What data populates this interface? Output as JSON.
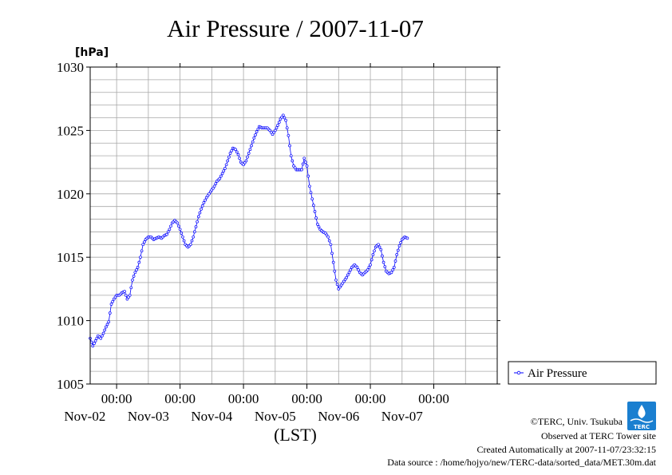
{
  "chart_data": {
    "type": "line",
    "title": "Air Pressure / 2007-11-07",
    "ylabel": "[hPa]",
    "xlabel": "(LST)",
    "ylim": [
      1005,
      1030
    ],
    "yticks": [
      1005,
      1010,
      1015,
      1020,
      1025,
      1030
    ],
    "xlim": [
      "2007-11-01 14:00",
      "2007-11-08 00:00"
    ],
    "x_ticks": [
      {
        "x": "2007-11-02 00:00",
        "time": "00:00",
        "date": "Nov-02"
      },
      {
        "x": "2007-11-03 00:00",
        "time": "00:00",
        "date": "Nov-03"
      },
      {
        "x": "2007-11-04 00:00",
        "time": "00:00",
        "date": "Nov-04"
      },
      {
        "x": "2007-11-05 00:00",
        "time": "00:00",
        "date": "Nov-05"
      },
      {
        "x": "2007-11-06 00:00",
        "time": "00:00",
        "date": "Nov-06"
      },
      {
        "x": "2007-11-07 00:00",
        "time": "00:00",
        "date": "Nov-07"
      }
    ],
    "grid": true,
    "legend": "right",
    "series": [
      {
        "name": "Air Pressure",
        "color": "#0000ff",
        "points": [
          {
            "x": "2007-11-01 14:00",
            "y": 1008.6
          },
          {
            "x": "2007-11-01 15:00",
            "y": 1008.0
          },
          {
            "x": "2007-11-01 16:00",
            "y": 1008.4
          },
          {
            "x": "2007-11-01 17:00",
            "y": 1008.8
          },
          {
            "x": "2007-11-01 18:00",
            "y": 1008.6
          },
          {
            "x": "2007-11-01 19:00",
            "y": 1009.0
          },
          {
            "x": "2007-11-01 20:00",
            "y": 1009.5
          },
          {
            "x": "2007-11-01 21:00",
            "y": 1009.9
          },
          {
            "x": "2007-11-01 22:00",
            "y": 1011.3
          },
          {
            "x": "2007-11-01 23:00",
            "y": 1011.7
          },
          {
            "x": "2007-11-02 00:00",
            "y": 1012.0
          },
          {
            "x": "2007-11-02 01:00",
            "y": 1012.0
          },
          {
            "x": "2007-11-02 02:00",
            "y": 1012.2
          },
          {
            "x": "2007-11-02 03:00",
            "y": 1012.3
          },
          {
            "x": "2007-11-02 04:00",
            "y": 1011.7
          },
          {
            "x": "2007-11-02 05:00",
            "y": 1012.0
          },
          {
            "x": "2007-11-02 06:00",
            "y": 1013.2
          },
          {
            "x": "2007-11-02 07:00",
            "y": 1013.8
          },
          {
            "x": "2007-11-02 08:00",
            "y": 1014.2
          },
          {
            "x": "2007-11-02 09:00",
            "y": 1015.0
          },
          {
            "x": "2007-11-02 10:00",
            "y": 1016.0
          },
          {
            "x": "2007-11-02 11:00",
            "y": 1016.4
          },
          {
            "x": "2007-11-02 12:00",
            "y": 1016.6
          },
          {
            "x": "2007-11-02 13:00",
            "y": 1016.6
          },
          {
            "x": "2007-11-02 14:00",
            "y": 1016.4
          },
          {
            "x": "2007-11-02 15:00",
            "y": 1016.5
          },
          {
            "x": "2007-11-02 16:00",
            "y": 1016.6
          },
          {
            "x": "2007-11-02 17:00",
            "y": 1016.5
          },
          {
            "x": "2007-11-02 18:00",
            "y": 1016.7
          },
          {
            "x": "2007-11-02 19:00",
            "y": 1016.8
          },
          {
            "x": "2007-11-02 20:00",
            "y": 1017.2
          },
          {
            "x": "2007-11-02 21:00",
            "y": 1017.7
          },
          {
            "x": "2007-11-02 22:00",
            "y": 1017.9
          },
          {
            "x": "2007-11-02 23:00",
            "y": 1017.7
          },
          {
            "x": "2007-11-03 00:00",
            "y": 1017.2
          },
          {
            "x": "2007-11-03 01:00",
            "y": 1016.6
          },
          {
            "x": "2007-11-03 02:00",
            "y": 1016.0
          },
          {
            "x": "2007-11-03 03:00",
            "y": 1015.8
          },
          {
            "x": "2007-11-03 04:00",
            "y": 1016.0
          },
          {
            "x": "2007-11-03 05:00",
            "y": 1016.6
          },
          {
            "x": "2007-11-03 06:00",
            "y": 1017.4
          },
          {
            "x": "2007-11-03 07:00",
            "y": 1018.2
          },
          {
            "x": "2007-11-03 08:00",
            "y": 1018.8
          },
          {
            "x": "2007-11-03 09:00",
            "y": 1019.3
          },
          {
            "x": "2007-11-03 10:00",
            "y": 1019.7
          },
          {
            "x": "2007-11-03 11:00",
            "y": 1020.0
          },
          {
            "x": "2007-11-03 12:00",
            "y": 1020.3
          },
          {
            "x": "2007-11-03 13:00",
            "y": 1020.6
          },
          {
            "x": "2007-11-03 14:00",
            "y": 1021.0
          },
          {
            "x": "2007-11-03 15:00",
            "y": 1021.2
          },
          {
            "x": "2007-11-03 16:00",
            "y": 1021.6
          },
          {
            "x": "2007-11-03 17:00",
            "y": 1022.0
          },
          {
            "x": "2007-11-03 18:00",
            "y": 1022.6
          },
          {
            "x": "2007-11-03 19:00",
            "y": 1023.2
          },
          {
            "x": "2007-11-03 20:00",
            "y": 1023.6
          },
          {
            "x": "2007-11-03 21:00",
            "y": 1023.5
          },
          {
            "x": "2007-11-03 22:00",
            "y": 1023.1
          },
          {
            "x": "2007-11-03 23:00",
            "y": 1022.5
          },
          {
            "x": "2007-11-04 00:00",
            "y": 1022.3
          },
          {
            "x": "2007-11-04 01:00",
            "y": 1022.6
          },
          {
            "x": "2007-11-04 02:00",
            "y": 1023.2
          },
          {
            "x": "2007-11-04 03:00",
            "y": 1023.8
          },
          {
            "x": "2007-11-04 04:00",
            "y": 1024.4
          },
          {
            "x": "2007-11-04 05:00",
            "y": 1024.9
          },
          {
            "x": "2007-11-04 06:00",
            "y": 1025.3
          },
          {
            "x": "2007-11-04 07:00",
            "y": 1025.2
          },
          {
            "x": "2007-11-04 08:00",
            "y": 1025.2
          },
          {
            "x": "2007-11-04 09:00",
            "y": 1025.2
          },
          {
            "x": "2007-11-04 10:00",
            "y": 1025.0
          },
          {
            "x": "2007-11-04 11:00",
            "y": 1024.7
          },
          {
            "x": "2007-11-04 12:00",
            "y": 1025.0
          },
          {
            "x": "2007-11-04 13:00",
            "y": 1025.4
          },
          {
            "x": "2007-11-04 14:00",
            "y": 1025.9
          },
          {
            "x": "2007-11-04 15:00",
            "y": 1026.2
          },
          {
            "x": "2007-11-04 16:00",
            "y": 1025.8
          },
          {
            "x": "2007-11-04 17:00",
            "y": 1024.6
          },
          {
            "x": "2007-11-04 18:00",
            "y": 1023.0
          },
          {
            "x": "2007-11-04 19:00",
            "y": 1022.2
          },
          {
            "x": "2007-11-04 20:00",
            "y": 1021.9
          },
          {
            "x": "2007-11-04 21:00",
            "y": 1021.9
          },
          {
            "x": "2007-11-04 22:00",
            "y": 1021.9
          },
          {
            "x": "2007-11-04 23:00",
            "y": 1022.8
          },
          {
            "x": "2007-11-05 00:00",
            "y": 1022.2
          },
          {
            "x": "2007-11-05 01:00",
            "y": 1020.6
          },
          {
            "x": "2007-11-05 02:00",
            "y": 1019.6
          },
          {
            "x": "2007-11-05 03:00",
            "y": 1018.6
          },
          {
            "x": "2007-11-05 04:00",
            "y": 1017.6
          },
          {
            "x": "2007-11-05 05:00",
            "y": 1017.2
          },
          {
            "x": "2007-11-05 06:00",
            "y": 1017.0
          },
          {
            "x": "2007-11-05 07:00",
            "y": 1016.9
          },
          {
            "x": "2007-11-05 08:00",
            "y": 1016.6
          },
          {
            "x": "2007-11-05 09:00",
            "y": 1016.0
          },
          {
            "x": "2007-11-05 10:00",
            "y": 1014.6
          },
          {
            "x": "2007-11-05 11:00",
            "y": 1013.2
          },
          {
            "x": "2007-11-05 12:00",
            "y": 1012.5
          },
          {
            "x": "2007-11-05 13:00",
            "y": 1012.8
          },
          {
            "x": "2007-11-05 14:00",
            "y": 1013.1
          },
          {
            "x": "2007-11-05 15:00",
            "y": 1013.4
          },
          {
            "x": "2007-11-05 16:00",
            "y": 1013.8
          },
          {
            "x": "2007-11-05 17:00",
            "y": 1014.2
          },
          {
            "x": "2007-11-05 18:00",
            "y": 1014.4
          },
          {
            "x": "2007-11-05 19:00",
            "y": 1014.2
          },
          {
            "x": "2007-11-05 20:00",
            "y": 1013.8
          },
          {
            "x": "2007-11-05 21:00",
            "y": 1013.6
          },
          {
            "x": "2007-11-05 22:00",
            "y": 1013.8
          },
          {
            "x": "2007-11-05 23:00",
            "y": 1014.0
          },
          {
            "x": "2007-11-06 00:00",
            "y": 1014.4
          },
          {
            "x": "2007-11-06 01:00",
            "y": 1015.2
          },
          {
            "x": "2007-11-06 02:00",
            "y": 1015.8
          },
          {
            "x": "2007-11-06 03:00",
            "y": 1016.0
          },
          {
            "x": "2007-11-06 04:00",
            "y": 1015.6
          },
          {
            "x": "2007-11-06 05:00",
            "y": 1014.6
          },
          {
            "x": "2007-11-06 06:00",
            "y": 1013.9
          },
          {
            "x": "2007-11-06 07:00",
            "y": 1013.7
          },
          {
            "x": "2007-11-06 08:00",
            "y": 1013.8
          },
          {
            "x": "2007-11-06 09:00",
            "y": 1014.2
          },
          {
            "x": "2007-11-06 10:00",
            "y": 1015.2
          },
          {
            "x": "2007-11-06 11:00",
            "y": 1015.9
          },
          {
            "x": "2007-11-06 12:00",
            "y": 1016.4
          },
          {
            "x": "2007-11-06 13:00",
            "y": 1016.6
          },
          {
            "x": "2007-11-06 14:00",
            "y": 1016.5
          }
        ]
      }
    ]
  },
  "footer": {
    "copyright": "©TERC, Univ. Tsukuba",
    "observed": "Observed at TERC Tower site",
    "created": "Created Automatically at 2007-11-07/23:32:15",
    "source": "Data source : /home/hojyo/new/TERC-data/sorted_data/MET.30m.dat"
  },
  "logo": {
    "text": "TERC",
    "color": "#1a7fd0"
  }
}
